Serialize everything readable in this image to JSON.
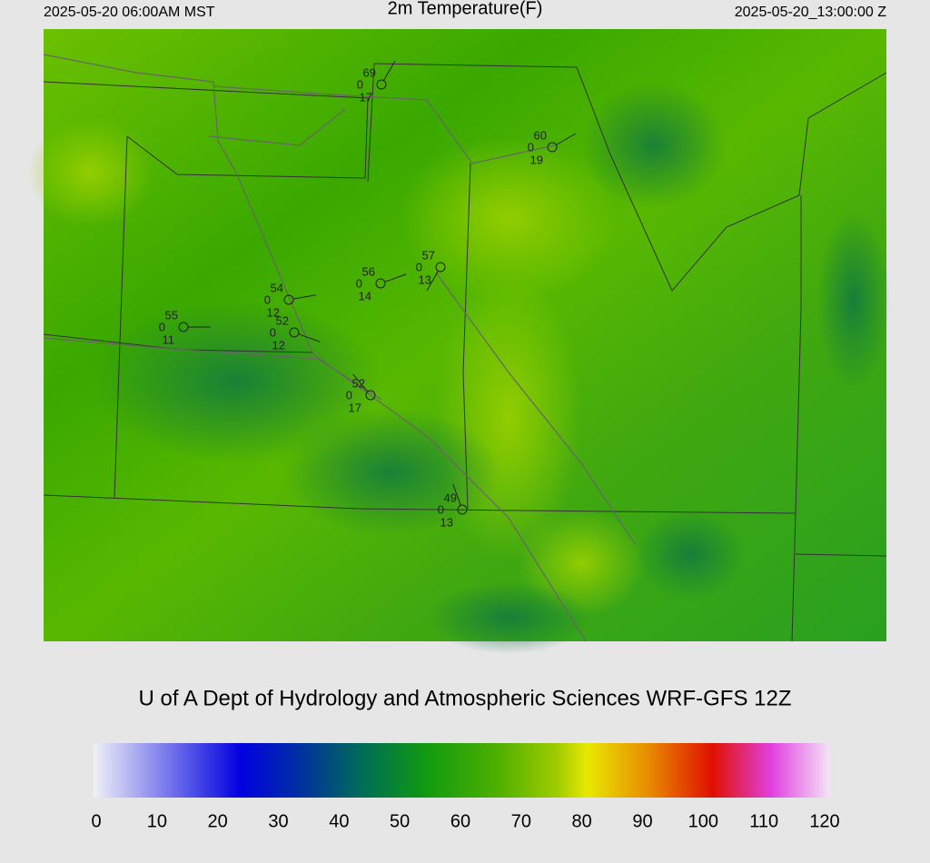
{
  "header": {
    "left": "2025-05-20 06:00AM MST",
    "title": "2m Temperature(F)",
    "right": "2025-05-20_13:00:00 Z"
  },
  "stations": [
    {
      "temperature": 69,
      "cloud": 0,
      "dewpoint": 17
    },
    {
      "temperature": 60,
      "cloud": 0,
      "dewpoint": 19
    },
    {
      "temperature": 57,
      "cloud": 0,
      "dewpoint": 13
    },
    {
      "temperature": 56,
      "cloud": 0,
      "dewpoint": 14
    },
    {
      "temperature": 54,
      "cloud": 0,
      "dewpoint": 12
    },
    {
      "temperature": 52,
      "cloud": 0,
      "dewpoint": 12
    },
    {
      "temperature": 55,
      "cloud": 0,
      "dewpoint": 11
    },
    {
      "temperature": 52,
      "cloud": 0,
      "dewpoint": 17
    },
    {
      "temperature": 49,
      "cloud": 0,
      "dewpoint": 13
    }
  ],
  "credit": "U of A Dept of Hydrology and Atmospheric Sciences WRF-GFS 12Z",
  "colorbar": {
    "range": [
      0,
      120
    ],
    "ticks": [
      0,
      10,
      20,
      30,
      40,
      50,
      60,
      70,
      80,
      90,
      100,
      110,
      120
    ]
  }
}
